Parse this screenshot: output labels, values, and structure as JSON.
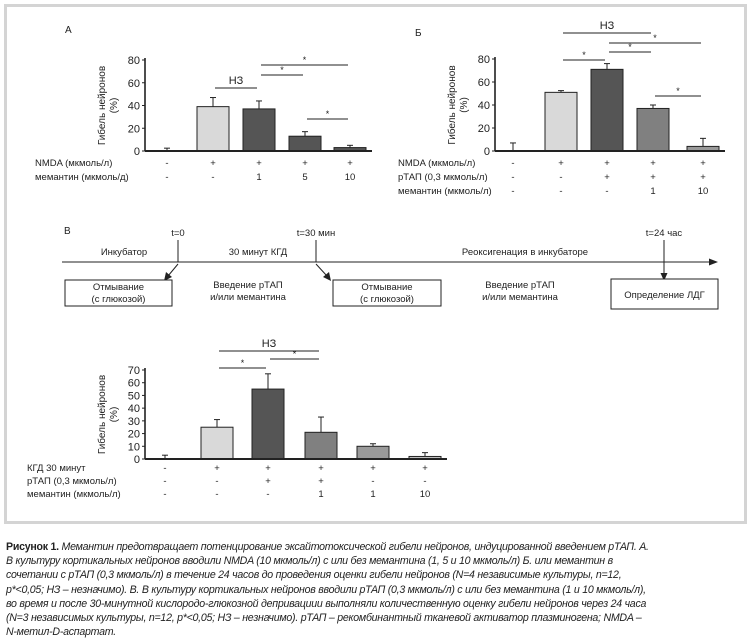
{
  "chart_data": [
    {
      "type": "bar",
      "panel_label": "А",
      "ylabel": "Гибель нейронов (%)",
      "ylabel_lines": [
        "Гибель нейронов",
        "(%)"
      ],
      "ylim": [
        0,
        80
      ],
      "yticks": [
        "0",
        "20",
        "40",
        "60",
        "80"
      ],
      "ytick_values": [
        0,
        20,
        40,
        60,
        80
      ],
      "values": [
        0,
        39,
        37,
        13,
        3
      ],
      "errors": [
        2.5,
        8,
        7,
        4,
        2
      ],
      "bar_colors": [
        "#ffffff",
        "#d9d9d9",
        "#555555",
        "#555555",
        "#555555"
      ],
      "condition_rows": [
        {
          "label": "NMDA (мкмоль/л)",
          "values": [
            "-",
            "+",
            "+",
            "+",
            "+"
          ]
        },
        {
          "label": "мемантин (мкмоль/д)",
          "values": [
            "-",
            "-",
            "1",
            "5",
            "10"
          ]
        }
      ],
      "annotations": [
        {
          "from": 1,
          "to": 2,
          "label": "НЗ"
        },
        {
          "from": 2,
          "to": 3,
          "label": "*"
        },
        {
          "from": 2,
          "to": 4,
          "label": "*"
        },
        {
          "from": 3,
          "to": 4,
          "label": "*"
        }
      ]
    },
    {
      "type": "bar",
      "panel_label": "Б",
      "ylabel": "Гибель нейронов (%)",
      "ylabel_lines": [
        "Гибель нейронов",
        "(%)"
      ],
      "ylim": [
        0,
        80
      ],
      "yticks": [
        "0",
        "20",
        "40",
        "60",
        "80"
      ],
      "ytick_values": [
        0,
        20,
        40,
        60,
        80
      ],
      "values": [
        0,
        51,
        71,
        37,
        4
      ],
      "errors": [
        7,
        1.5,
        5,
        3,
        7
      ],
      "bar_colors": [
        "#ffffff",
        "#d9d9d9",
        "#555555",
        "#808080",
        "#9a9a9a"
      ],
      "condition_rows": [
        {
          "label": "NMDA (мкмоль/л)",
          "values": [
            "-",
            "+",
            "+",
            "+",
            "+"
          ]
        },
        {
          "label": "рТАП (0,3 мкмоль/л)",
          "values": [
            "-",
            "-",
            "+",
            "+",
            "+"
          ]
        },
        {
          "label": "мемантин (мкмоль/л)",
          "values": [
            "-",
            "-",
            "-",
            "1",
            "10"
          ]
        }
      ],
      "annotations": [
        {
          "from": 1,
          "to": 3,
          "label": "НЗ"
        },
        {
          "from": 1,
          "to": 2,
          "label": "*"
        },
        {
          "from": 2,
          "to": 3,
          "label": "*"
        },
        {
          "from": 2,
          "to": 4,
          "label": "*"
        },
        {
          "from": 3,
          "to": 4,
          "label": "*"
        }
      ]
    },
    {
      "type": "bar",
      "panel_label": "",
      "ylabel": "Гибель нейронов (%)",
      "ylabel_lines": [
        "Гибель нейронов",
        "(%)"
      ],
      "ylim": [
        0,
        70
      ],
      "yticks": [
        "0",
        "10",
        "20",
        "30",
        "40",
        "50",
        "60",
        "70"
      ],
      "ytick_values": [
        0,
        10,
        20,
        30,
        40,
        50,
        60,
        70
      ],
      "values": [
        0,
        25,
        55,
        21,
        10,
        2
      ],
      "errors": [
        3,
        6,
        12,
        12,
        2,
        3
      ],
      "bar_colors": [
        "#ffffff",
        "#d9d9d9",
        "#555555",
        "#808080",
        "#9a9a9a",
        "#c0c0c0"
      ],
      "condition_rows": [
        {
          "label": "КГД 30 минут",
          "values": [
            "-",
            "+",
            "+",
            "+",
            "+",
            "+"
          ]
        },
        {
          "label": "рТАП (0,3 мкмоль/л)",
          "values": [
            "-",
            "-",
            "+",
            "+",
            "-",
            "-"
          ]
        },
        {
          "label": "мемантин (мкмоль/л)",
          "values": [
            "-",
            "-",
            "-",
            "1",
            "1",
            "10"
          ]
        }
      ],
      "annotations": [
        {
          "from": 1,
          "to": 3,
          "label": "НЗ"
        },
        {
          "from": 1,
          "to": 2,
          "label": "*"
        },
        {
          "from": 2,
          "to": 3,
          "label": "*"
        }
      ]
    }
  ],
  "timeline": {
    "panel_label": "В",
    "marks": [
      "t=0",
      "t=30 мин",
      "t=24 час"
    ],
    "phases": [
      "Инкубатор",
      "30 минут КГД",
      "Реоксигенация в инкубаторе"
    ],
    "boxes": [
      {
        "lines": [
          "Отмывание",
          "(с глюкозой)"
        ]
      },
      {
        "lines": [
          "Отмывание",
          "(с глюкозой)"
        ]
      },
      {
        "lines": [
          "Определение ЛДГ"
        ]
      }
    ],
    "notes": [
      {
        "lines": [
          "Введение рТАП",
          "и/или мемантина"
        ]
      },
      {
        "lines": [
          "Введение рТАП",
          "и/или мемантина"
        ]
      }
    ]
  },
  "caption": {
    "title": "Рисунок 1.",
    "lines": [
      " Мемантин предотвращает потенцирование эксайтотоксической гибели нейронов, индуцированной введением рТАП. А.",
      "В культуру кортикальных нейронов вводили NMDA (10 мкмоль/л) с или без мемантина (1, 5 и 10 мкмоль/л) Б. или мемантин в",
      "сочетании с рТАП (0,3 мкмоль/л) в течение 24 часов до проведения оценки гибели нейронов (N=4 независимые культуры, n=12,",
      "p*<0,05; НЗ – незначимо). В. В культуру кортикальных нейронов вводили рТАП (0,3 мкмоль/л) с или без мемантина (1 и 10 мкмоль/л),",
      "во время и после 30-минутной кислородо-глюкозной депривациии выполняли количественную оценку гибели нейронов через 24 часа",
      "(N=3 независимых культуры, n=12, p*<0,05; НЗ – незначимо). рТАП – рекомбинантный тканевой активатор плазминогена; NMDA –",
      "N-метил-D-аспартат."
    ]
  }
}
